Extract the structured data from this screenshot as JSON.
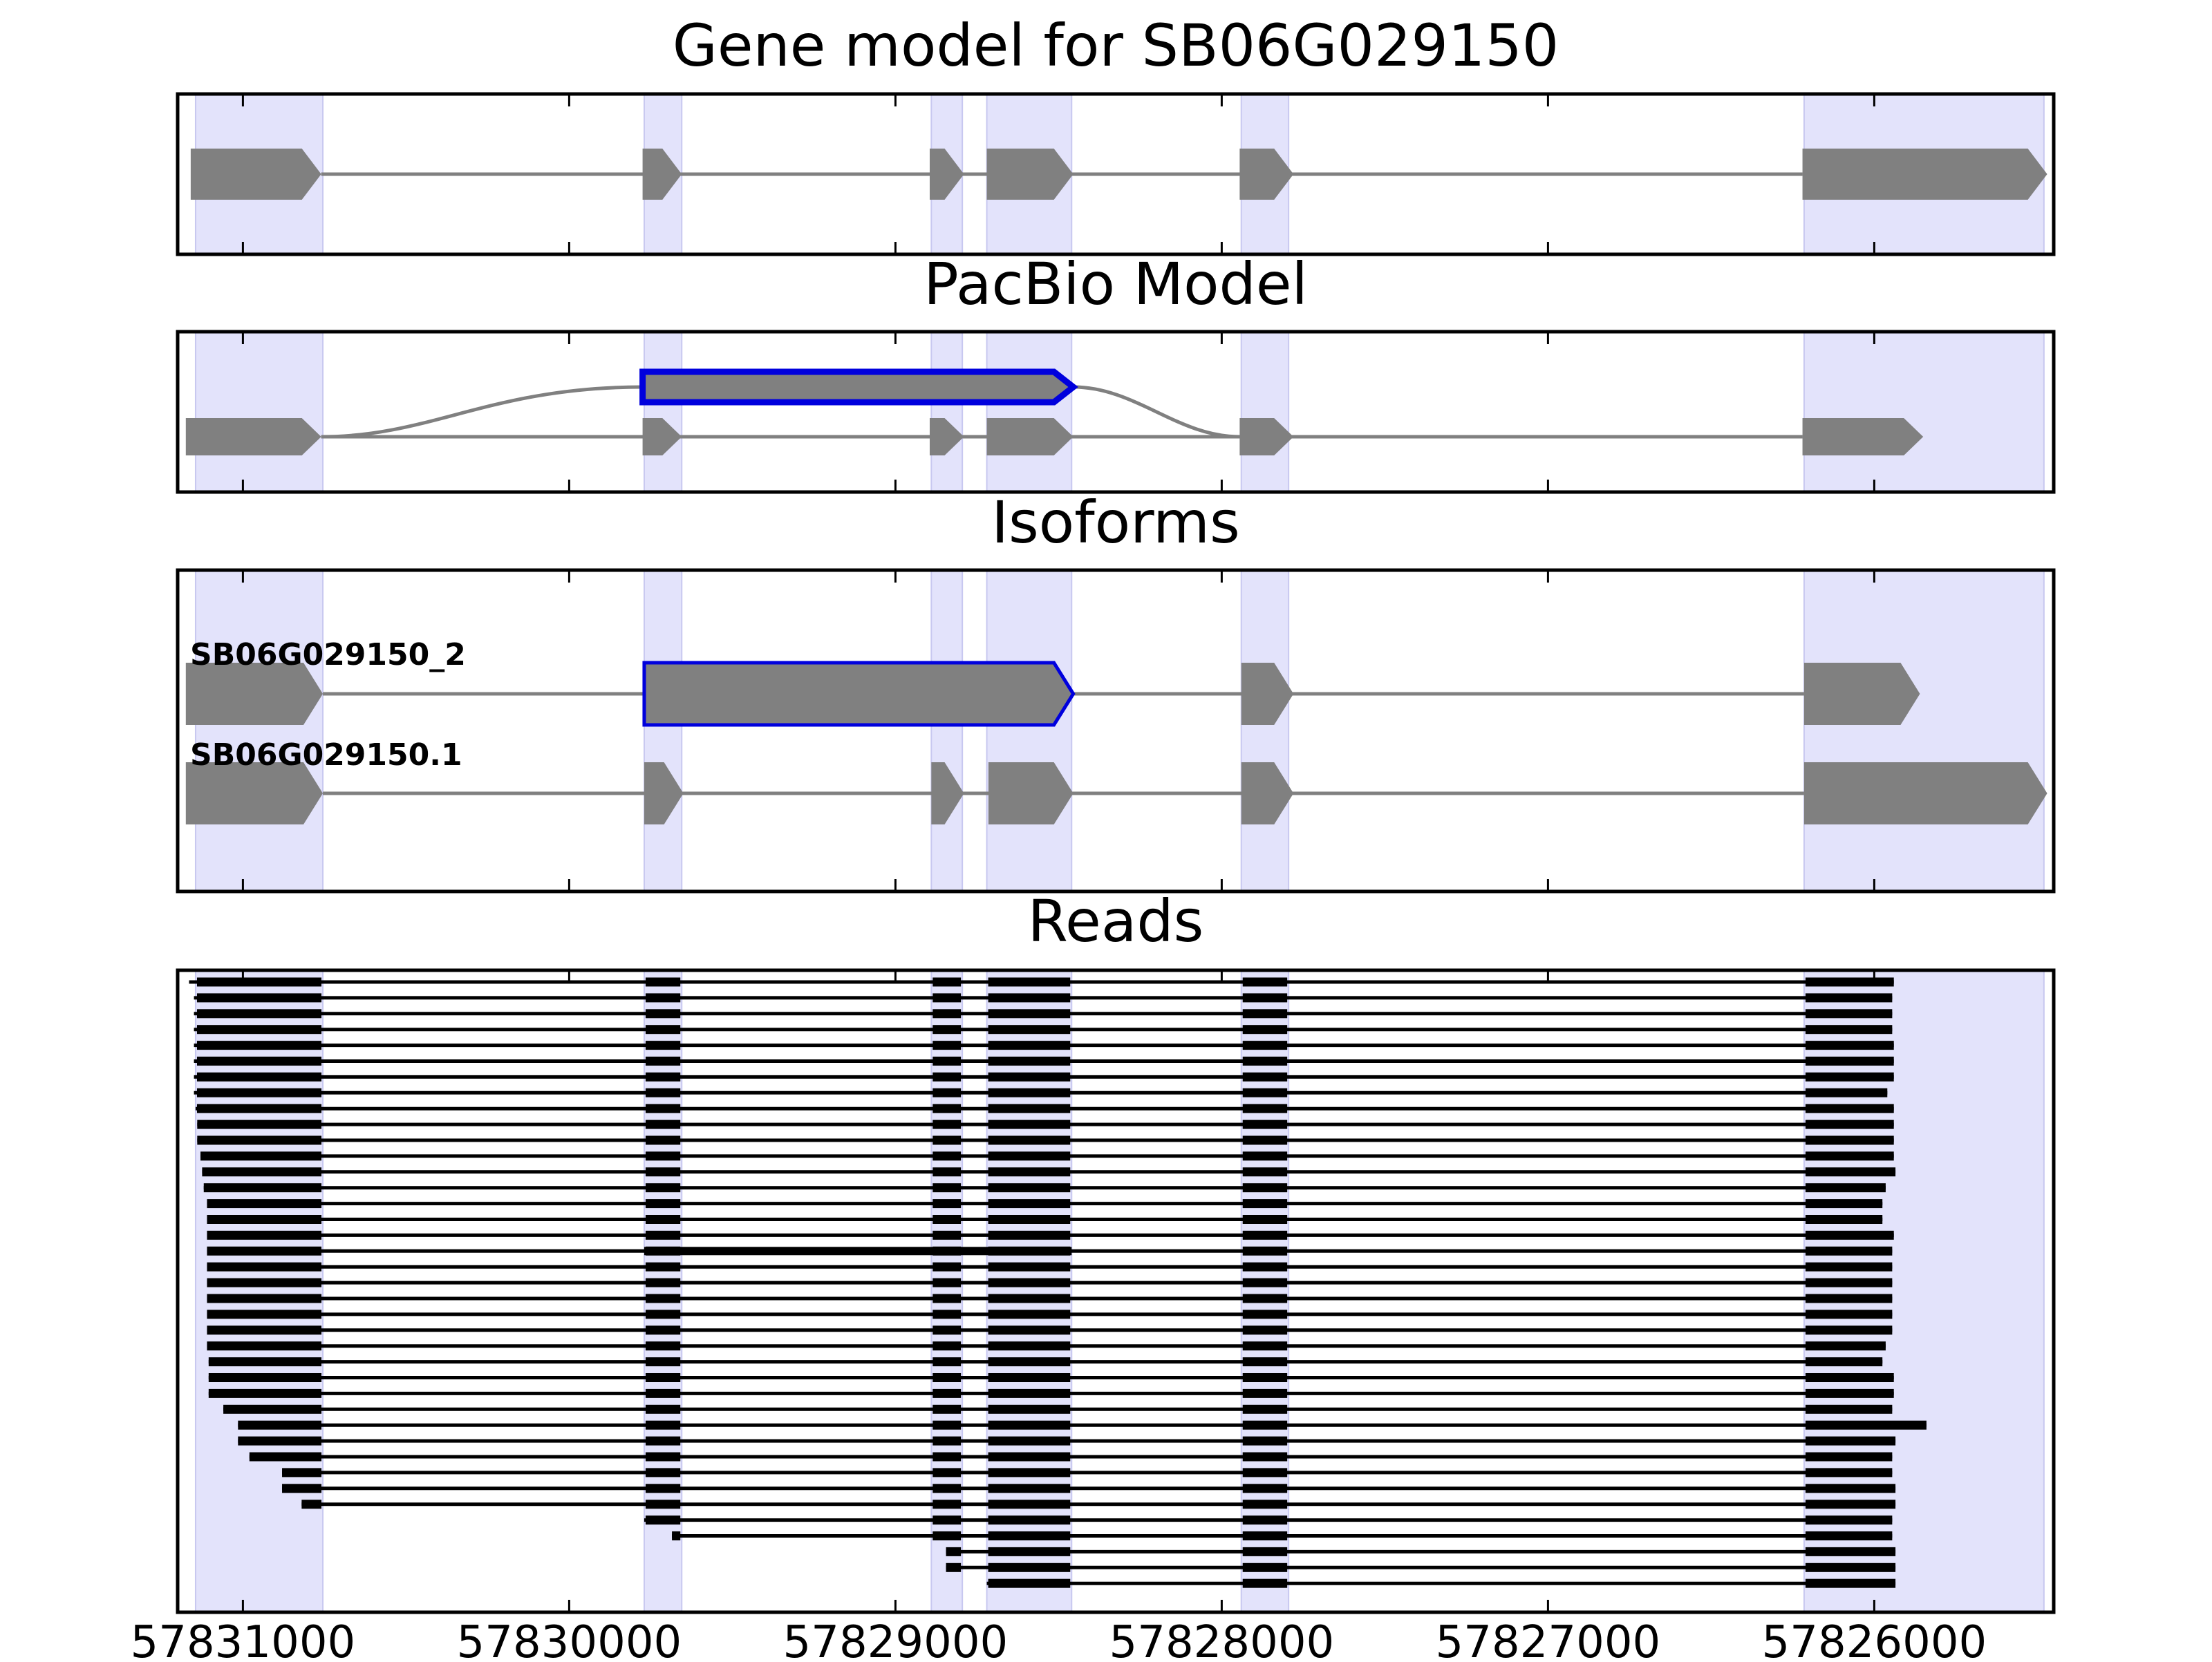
{
  "titles": {
    "gene_model": "Gene model for SB06G029150",
    "pacbio": "PacBio Model",
    "isoforms": "Isoforms",
    "reads": "Reads"
  },
  "axis": {
    "ticks": [
      {
        "value": 57831000,
        "label": "57831000"
      },
      {
        "value": 57830000,
        "label": "57830000"
      },
      {
        "value": 57829000,
        "label": "57829000"
      },
      {
        "value": 57828000,
        "label": "57828000"
      },
      {
        "value": 57827000,
        "label": "57827000"
      },
      {
        "value": 57826000,
        "label": "57826000"
      }
    ],
    "reversed": true,
    "range": [
      57831200,
      57825450
    ]
  },
  "colors": {
    "exon_fill": "#808080",
    "intron_line": "#808080",
    "highlight_band": "#e3e3fb",
    "selected_outline": "#0000dd",
    "read_color": "#000000"
  },
  "chart_data": {
    "type": "gene-model",
    "exon_bands": [
      [
        57831145,
        57830755
      ],
      [
        57829770,
        57829655
      ],
      [
        57828890,
        57828795
      ],
      [
        57828720,
        57828460
      ],
      [
        57827940,
        57827795
      ],
      [
        57826215,
        57825480
      ]
    ],
    "gene_model": {
      "exons": [
        [
          57831160,
          57830760
        ],
        [
          57829775,
          57829655
        ],
        [
          57828895,
          57828790
        ],
        [
          57828720,
          57828455
        ],
        [
          57827945,
          57827780
        ],
        [
          57826220,
          57825470
        ]
      ]
    },
    "pacbio_model": {
      "merged_exon": [
        57829775,
        57828455
      ],
      "exons": [
        [
          57831175,
          57830760
        ],
        [
          57829775,
          57829655
        ],
        [
          57828895,
          57828790
        ],
        [
          57828720,
          57828455
        ],
        [
          57827945,
          57827780
        ],
        [
          57826220,
          57825850
        ]
      ]
    },
    "isoforms": [
      {
        "name": "SB06G029150_2",
        "selected": true,
        "exons": [
          [
            57831175,
            57830755
          ],
          [
            57829770,
            57828455
          ],
          [
            57827940,
            57827780
          ],
          [
            57826215,
            57825860
          ]
        ]
      },
      {
        "name": "SB06G029150.1",
        "selected": false,
        "exons": [
          [
            57831175,
            57830755
          ],
          [
            57829770,
            57829650
          ],
          [
            57828890,
            57828790
          ],
          [
            57828715,
            57828455
          ],
          [
            57827940,
            57827780
          ],
          [
            57826215,
            57825470
          ]
        ]
      }
    ],
    "reads": [
      {
        "start": 57831165,
        "end": 57825940
      },
      {
        "start": 57831150,
        "end": 57825945
      },
      {
        "start": 57831150,
        "end": 57825945
      },
      {
        "start": 57831150,
        "end": 57825945
      },
      {
        "start": 57831150,
        "end": 57825940
      },
      {
        "start": 57831150,
        "end": 57825940
      },
      {
        "start": 57831150,
        "end": 57825940
      },
      {
        "start": 57831150,
        "end": 57825960
      },
      {
        "start": 57831145,
        "end": 57825940
      },
      {
        "start": 57831140,
        "end": 57825940
      },
      {
        "start": 57831140,
        "end": 57825940
      },
      {
        "start": 57831130,
        "end": 57825940
      },
      {
        "start": 57831125,
        "end": 57825935
      },
      {
        "start": 57831120,
        "end": 57825965
      },
      {
        "start": 57831110,
        "end": 57825975
      },
      {
        "start": 57831110,
        "end": 57825975
      },
      {
        "start": 57831110,
        "end": 57825940
      },
      {
        "start": 57831110,
        "end": 57825945,
        "long_middle": true
      },
      {
        "start": 57831110,
        "end": 57825945
      },
      {
        "start": 57831110,
        "end": 57825945
      },
      {
        "start": 57831110,
        "end": 57825945
      },
      {
        "start": 57831110,
        "end": 57825945
      },
      {
        "start": 57831110,
        "end": 57825945
      },
      {
        "start": 57831110,
        "end": 57825965
      },
      {
        "start": 57831105,
        "end": 57825975
      },
      {
        "start": 57831105,
        "end": 57825940
      },
      {
        "start": 57831105,
        "end": 57825940
      },
      {
        "start": 57831060,
        "end": 57825945
      },
      {
        "start": 57831015,
        "end": 57825840
      },
      {
        "start": 57831015,
        "end": 57825935
      },
      {
        "start": 57830980,
        "end": 57825945
      },
      {
        "start": 57830880,
        "end": 57825945
      },
      {
        "start": 57830880,
        "end": 57825935
      },
      {
        "start": 57830820,
        "end": 57825935
      },
      {
        "start": 57829770,
        "end": 57825945
      },
      {
        "start": 57829685,
        "end": 57825945
      },
      {
        "start": 57828845,
        "end": 57825935
      },
      {
        "start": 57828845,
        "end": 57825935
      },
      {
        "start": 57828720,
        "end": 57825935
      }
    ]
  }
}
